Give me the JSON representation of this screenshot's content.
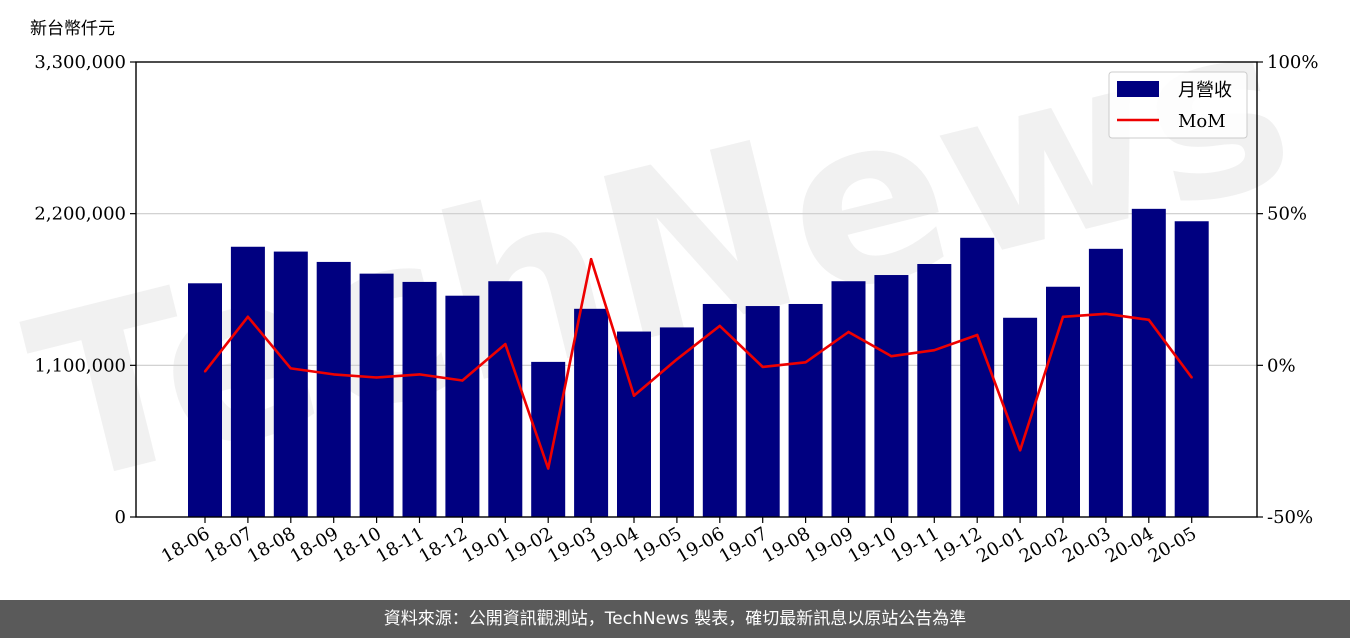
{
  "chart_data": {
    "type": "bar",
    "unit_label": "新台幣仟元",
    "categories": [
      "18-06",
      "18-07",
      "18-08",
      "18-09",
      "18-10",
      "18-11",
      "18-12",
      "19-01",
      "19-02",
      "19-03",
      "19-04",
      "19-05",
      "19-06",
      "19-07",
      "19-08",
      "19-09",
      "19-10",
      "19-11",
      "19-12",
      "20-01",
      "20-02",
      "20-03",
      "20-04",
      "20-05"
    ],
    "series": [
      {
        "name": "月營收",
        "type": "bar",
        "axis": "left",
        "color": "#000080",
        "values": [
          1695000,
          1960000,
          1925000,
          1850000,
          1765000,
          1705000,
          1605000,
          1710000,
          1125000,
          1510000,
          1345000,
          1375000,
          1545000,
          1530000,
          1545000,
          1710000,
          1755000,
          1835000,
          2025000,
          1445000,
          1670000,
          1945000,
          2235000,
          2145000
        ]
      },
      {
        "name": "MoM",
        "type": "line",
        "axis": "right",
        "color": "#ee0000",
        "values": [
          -2,
          16,
          -1,
          -3,
          -4,
          -3,
          -5,
          7,
          -34,
          35,
          -10,
          2,
          13,
          -0.5,
          1,
          11,
          3,
          5,
          10,
          -28,
          16,
          17,
          15,
          -4
        ]
      }
    ],
    "y_left": {
      "min": 0,
      "max": 3300000,
      "ticks": [
        0,
        1100000,
        2200000,
        3300000
      ],
      "tick_labels": [
        "0",
        "1,100,000",
        "2,200,000",
        "3,300,000"
      ]
    },
    "y_right": {
      "min": -50,
      "max": 100,
      "ticks": [
        -50,
        0,
        50,
        100
      ],
      "tick_labels": [
        "-50%",
        "0%",
        "50%",
        "100%"
      ]
    },
    "grid": "horizontal",
    "legend_position": "top-right"
  },
  "watermark": "TechNews",
  "footer": {
    "text": "資料來源：公開資訊觀測站，TechNews 製表，確切最新訊息以原站公告為準"
  },
  "colors": {
    "bar": "#000080",
    "line": "#ee0000",
    "footer_bg": "#5a5a5a",
    "grid": "#cccccc"
  }
}
